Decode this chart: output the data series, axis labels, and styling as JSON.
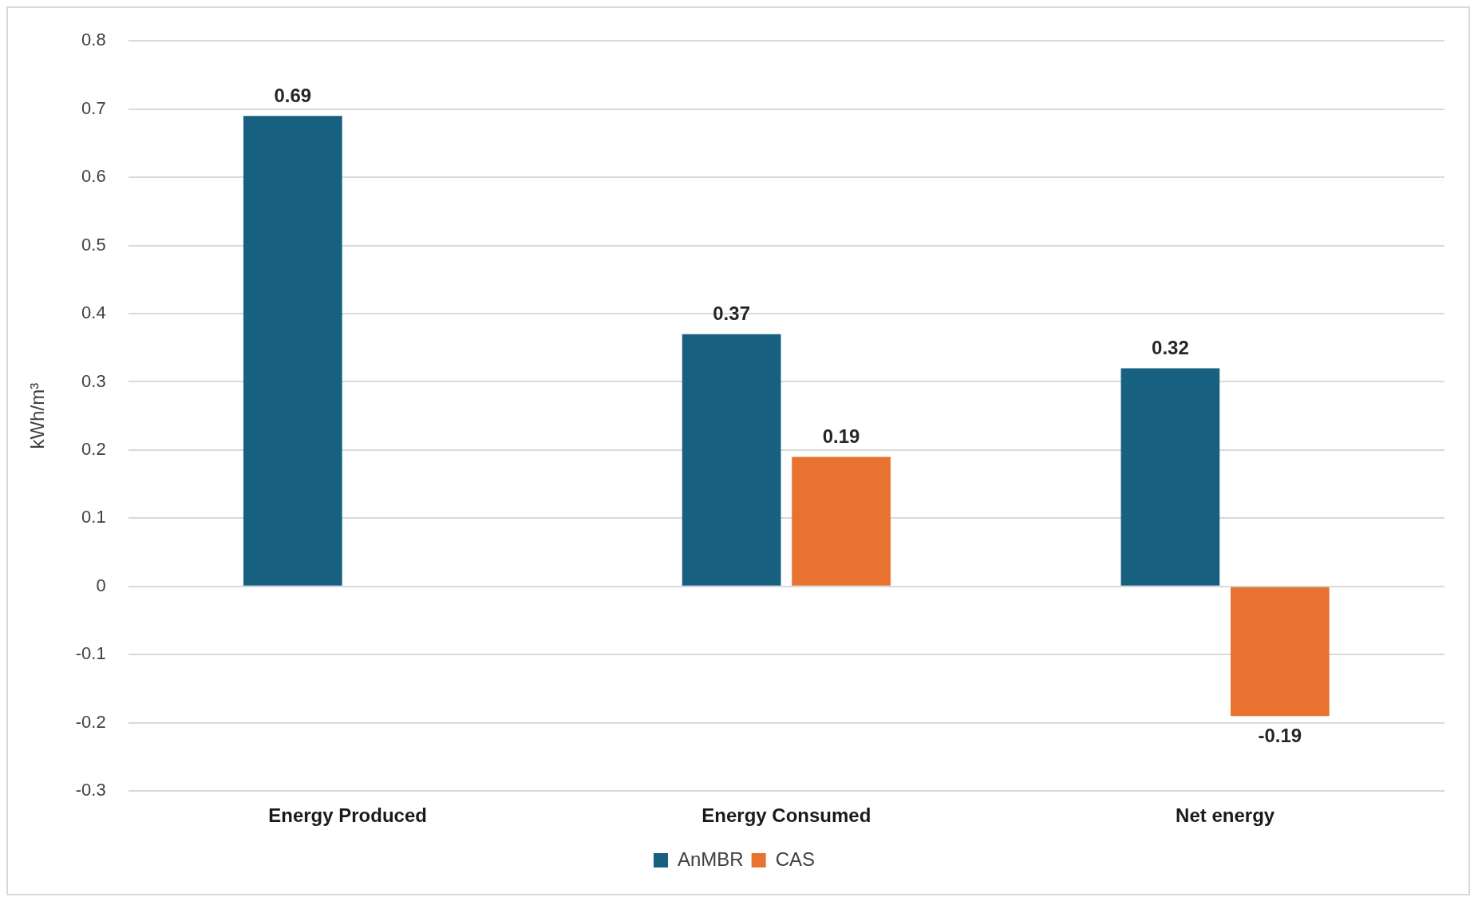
{
  "chart_data": {
    "type": "bar",
    "ylabel": "kWh/m³",
    "categories": [
      "Energy Produced",
      "Energy Consumed",
      "Net energy"
    ],
    "series": [
      {
        "name": "AnMBR",
        "color": "#17607f",
        "values": [
          0.69,
          0.37,
          0.32
        ]
      },
      {
        "name": "CAS",
        "color": "#e8722f",
        "values": [
          null,
          0.19,
          -0.19
        ]
      }
    ],
    "ylim": [
      -0.3,
      0.8
    ],
    "yticks": [
      -0.3,
      -0.2,
      -0.1,
      0,
      0.1,
      0.2,
      0.3,
      0.4,
      0.5,
      0.6,
      0.7,
      0.8
    ],
    "grid": "y",
    "legend": "bottom",
    "data_labels": true
  }
}
